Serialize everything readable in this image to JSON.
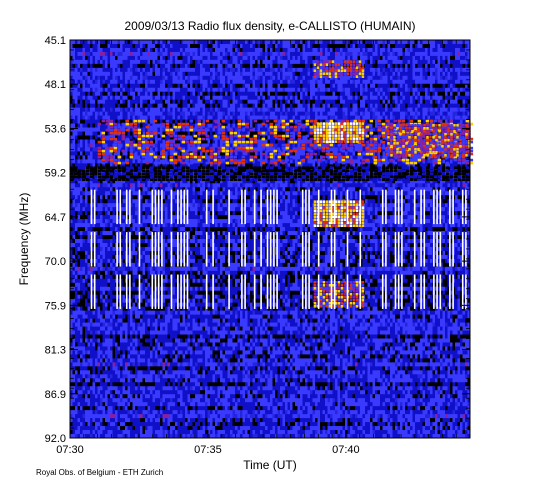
{
  "chart_data": {
    "type": "heatmap",
    "title": "2009/03/13  Radio flux density, e-CALLISTO (HUMAIN)",
    "xlabel": "Time (UT)",
    "ylabel": "Frequency (MHz)",
    "credit": "Royal Obs. of Belgium - ETH Zurich",
    "x_range": [
      "07:30",
      "07:44:30"
    ],
    "x_ticks": [
      "07:30",
      "07:35",
      "07:40"
    ],
    "y_range_mhz": [
      45.1,
      92.0
    ],
    "y_axis_direction": "frequency increases downward",
    "y_ticks": [
      "45.1",
      "48.1",
      "53.6",
      "59.2",
      "64.7",
      "70.0",
      "75.9",
      "81.3",
      "86.9",
      "92.0"
    ],
    "colormap": [
      "#000000",
      "#1010c8",
      "#3a3aff",
      "#8a20a0",
      "#e03010",
      "#ffd000",
      "#ffffff"
    ],
    "features": [
      {
        "name": "drifting band",
        "type": "band",
        "time_start": "07:31",
        "time_end": "07:44:30",
        "freq_start_mhz": 54.5,
        "freq_end_mhz": 59.8,
        "level": "high"
      },
      {
        "name": "dark band",
        "type": "band",
        "time_start": "07:30",
        "time_end": "07:44:30",
        "freq_start_mhz": 60.0,
        "freq_end_mhz": 61.5,
        "level": "low"
      },
      {
        "name": "burst 1",
        "type": "spot",
        "time_start": "07:38:50",
        "time_end": "07:40:40",
        "freq_start_mhz": 54.8,
        "freq_end_mhz": 57.0,
        "level": "very high"
      },
      {
        "name": "burst 2",
        "type": "spot",
        "time_start": "07:38:50",
        "time_end": "07:40:40",
        "freq_start_mhz": 64.0,
        "freq_end_mhz": 67.0,
        "level": "very high"
      },
      {
        "name": "burst 3",
        "type": "spot",
        "time_start": "07:41:30",
        "time_end": "07:44:30",
        "freq_start_mhz": 55.0,
        "freq_end_mhz": 58.8,
        "level": "high"
      },
      {
        "name": "burst 4",
        "type": "spot",
        "time_start": "07:38:50",
        "time_end": "07:40:40",
        "freq_start_mhz": 73.5,
        "freq_end_mhz": 76.5,
        "level": "high"
      },
      {
        "name": "emission near 47 MHz",
        "type": "spot",
        "time_start": "07:38:50",
        "time_end": "07:40:40",
        "freq_start_mhz": 47.5,
        "freq_end_mhz": 49.5,
        "level": "high"
      },
      {
        "name": "interference lines",
        "type": "lines",
        "time_start": "07:30:45",
        "time_end": "07:44:30",
        "freq_start_mhz": 62.5,
        "freq_end_mhz": 77.5,
        "level": "white"
      }
    ]
  }
}
